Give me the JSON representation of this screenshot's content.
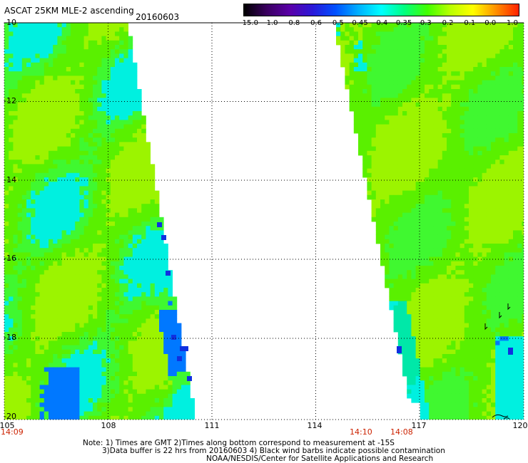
{
  "header": {
    "title": "ASCAT 25KM MLE-2 ascending",
    "date": "20160603"
  },
  "colorbar": {
    "labels": [
      "-15.0",
      "-1.0",
      "-0.8",
      "-0.6",
      "-0.5",
      "-0.45",
      "-0.4",
      "-0.35",
      "-0.3",
      "-0.2",
      "-0.1",
      "0.0",
      "1.0"
    ],
    "colors": [
      "#000000",
      "#3a0060",
      "#5a00a8",
      "#2a18d8",
      "#0050ff",
      "#00b0ff",
      "#00ffff",
      "#00ff80",
      "#40ff00",
      "#b8ff00",
      "#ffff00",
      "#ff9000",
      "#ff2000"
    ]
  },
  "axes": {
    "y_ticks": [
      "-10",
      "-12",
      "-14",
      "-16",
      "-18",
      "-20"
    ],
    "x_ticks": [
      "105",
      "108",
      "111",
      "114",
      "117",
      "120"
    ]
  },
  "times": [
    "14:09",
    "14:10",
    "14:08"
  ],
  "notes": {
    "line1": "Note: 1) Times are GMT 2)Times along bottom correspond to measurement at -15S",
    "line2": "3)Data buffer is 22 hrs from 20160603 4) Black wind barbs indicate possible contamination",
    "line3": "NOAA/NESDIS/Center for Satellite Applications and Research"
  }
}
